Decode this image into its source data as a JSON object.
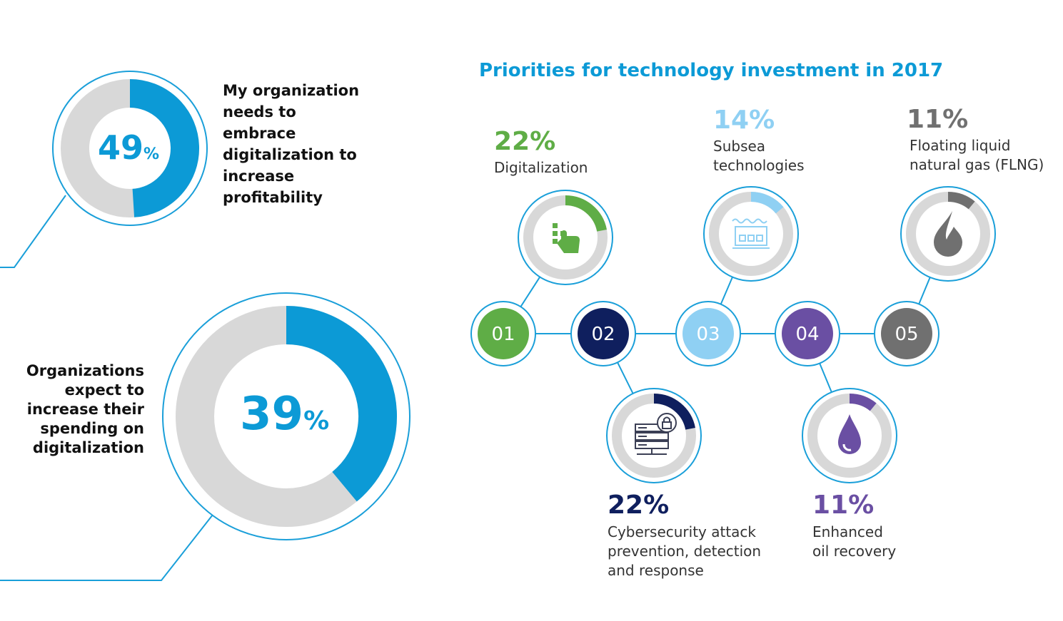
{
  "stats": [
    {
      "value": "49",
      "unit": "%",
      "fraction": 0.49,
      "text": "My organization needs to embrace digitalization to increase profitability"
    },
    {
      "value": "39",
      "unit": "%",
      "fraction": 0.39,
      "text": "Organizations expect to increase their spending on digitalization"
    }
  ],
  "title": "Priorities for technology investment in 2017",
  "priorities": [
    {
      "num": "01",
      "pct": "22%",
      "value": 22,
      "label": [
        "Digitalization"
      ],
      "color": "#5fad46",
      "light": "#a6d18c",
      "icon": "hand-touch-icon"
    },
    {
      "num": "02",
      "pct": "22%",
      "value": 22,
      "label": [
        "Cybersecurity attack",
        "prevention, detection",
        "and response"
      ],
      "color": "#0f1f5e",
      "light": "#4a5a8a",
      "icon": "server-lock-icon"
    },
    {
      "num": "03",
      "pct": "14%",
      "value": 14,
      "label": [
        "Subsea",
        "technologies"
      ],
      "color": "#8fd0f3",
      "light": "#8fd0f3",
      "icon": "subsea-platform-icon"
    },
    {
      "num": "04",
      "pct": "11%",
      "value": 11,
      "label": [
        "Enhanced",
        "oil recovery"
      ],
      "color": "#6a4fa3",
      "light": "#6a4fa3",
      "icon": "oil-drop-icon"
    },
    {
      "num": "05",
      "pct": "11%",
      "value": 11,
      "label": [
        "Floating liquid",
        "natural gas (FLNG)"
      ],
      "color": "#707070",
      "light": "#707070",
      "icon": "gas-flame-icon"
    }
  ],
  "colors": {
    "accent": "#0c9ad6",
    "track": "#d8d8d8",
    "outline": "#1a9fd9"
  },
  "chart_data": [
    {
      "type": "pie",
      "title": "",
      "categories": [
        "My organization needs to embrace digitalization to increase profitability",
        ""
      ],
      "values": [
        49,
        51
      ]
    },
    {
      "type": "pie",
      "title": "",
      "categories": [
        "Organizations expect to increase their spending on digitalization",
        ""
      ],
      "values": [
        39,
        61
      ]
    },
    {
      "type": "bar",
      "title": "Priorities for technology investment in 2017",
      "categories": [
        "Digitalization",
        "Cybersecurity attack prevention, detection and response",
        "Subsea technologies",
        "Enhanced oil recovery",
        "Floating liquid natural gas (FLNG)"
      ],
      "values": [
        22,
        22,
        14,
        11,
        11
      ]
    }
  ]
}
